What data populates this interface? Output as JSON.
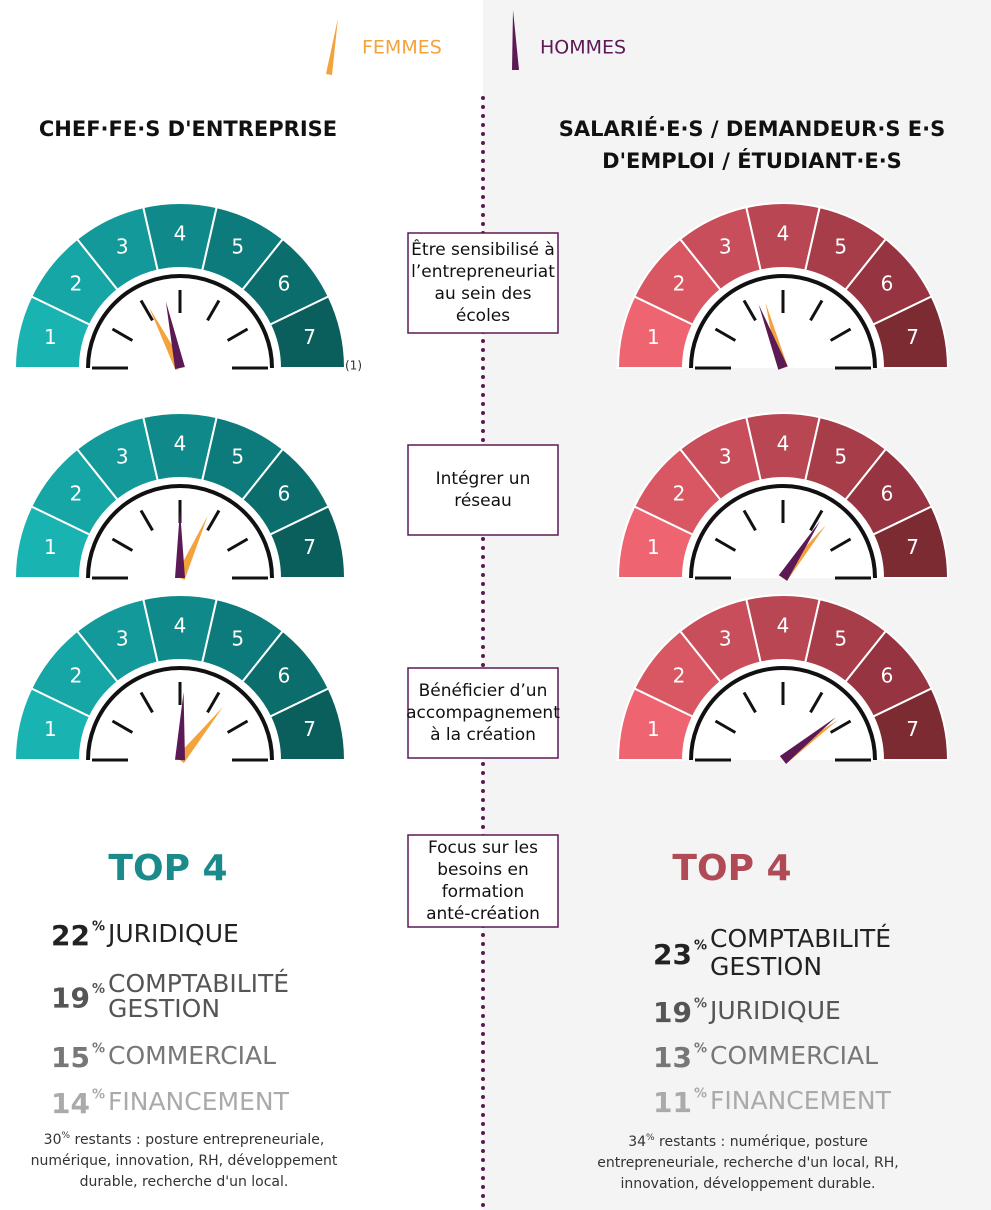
{
  "legend": [
    {
      "label": "FEMMES",
      "color": "#f4a23c"
    },
    {
      "label": "HOMMES",
      "color": "#5b1a55"
    }
  ],
  "panels": [
    {
      "title": [
        "CHEF·FE·S D'ENTREPRISE"
      ],
      "colors": [
        "#19b3b2",
        "#15a6a5",
        "#13999a",
        "#10898a",
        "#0d7b7b",
        "#0c6e6c",
        "#0a5e5b"
      ],
      "note": "(1)"
    },
    {
      "title": [
        "SALARIÉ·E·S / DEMANDEUR·S E·S",
        "D'EMPLOI / ÉTUDIANT·E·S"
      ],
      "colors": [
        "#ee6470",
        "#d95762",
        "#c94e5b",
        "#b84653",
        "#a83d4a",
        "#963541",
        "#7c2b33"
      ]
    }
  ],
  "scale": [
    1,
    2,
    3,
    4,
    5,
    6,
    7
  ],
  "rows": [
    {
      "label": [
        "Être sensibilisé à",
        "l’entrepreneuriat",
        "au sein des",
        "écoles"
      ],
      "left": {
        "femmes": 3.1,
        "hommes": 3.6
      },
      "right": {
        "femmes": 3.5,
        "hommes": 3.3
      }
    },
    {
      "label": [
        "Intégrer un",
        "réseau"
      ],
      "left": {
        "femmes": 4.8,
        "hommes": 4.0
      },
      "right": {
        "femmes": 5.3,
        "hommes": 5.1
      }
    },
    {
      "label": [
        "Bénéficier d’un",
        "accompagnement",
        "à la création"
      ],
      "left": {
        "femmes": 5.3,
        "hommes": 4.1
      },
      "right": {
        "femmes": 5.8,
        "hommes": 5.7
      }
    }
  ],
  "focus": [
    "Focus sur les",
    "besoins en",
    "formation",
    "anté-création"
  ],
  "unit": "%",
  "top4": [
    {
      "title": "TOP 4",
      "items": [
        {
          "value": 22,
          "label": [
            "JURIDIQUE"
          ]
        },
        {
          "value": 19,
          "label": [
            "COMPTABILITÉ",
            "GESTION"
          ]
        },
        {
          "value": 15,
          "label": [
            "COMMERCIAL"
          ]
        },
        {
          "value": 14,
          "label": [
            "FINANCEMENT"
          ]
        }
      ],
      "footnote": {
        "value": 30,
        "lines": [
          "restants : posture entrepreneuriale,",
          "numérique, innovation, RH, développement",
          "durable, recherche d'un local."
        ]
      }
    },
    {
      "title": "TOP 4",
      "items": [
        {
          "value": 23,
          "label": [
            "COMPTABILITÉ",
            "GESTION"
          ]
        },
        {
          "value": 19,
          "label": [
            "JURIDIQUE"
          ]
        },
        {
          "value": 13,
          "label": [
            "COMMERCIAL"
          ]
        },
        {
          "value": 11,
          "label": [
            "FINANCEMENT"
          ]
        }
      ],
      "footnote": {
        "value": 34,
        "lines": [
          "restants : numérique, posture",
          "entrepreneuriale, recherche d'un local, RH,",
          "innovation, développement durable."
        ]
      }
    }
  ]
}
